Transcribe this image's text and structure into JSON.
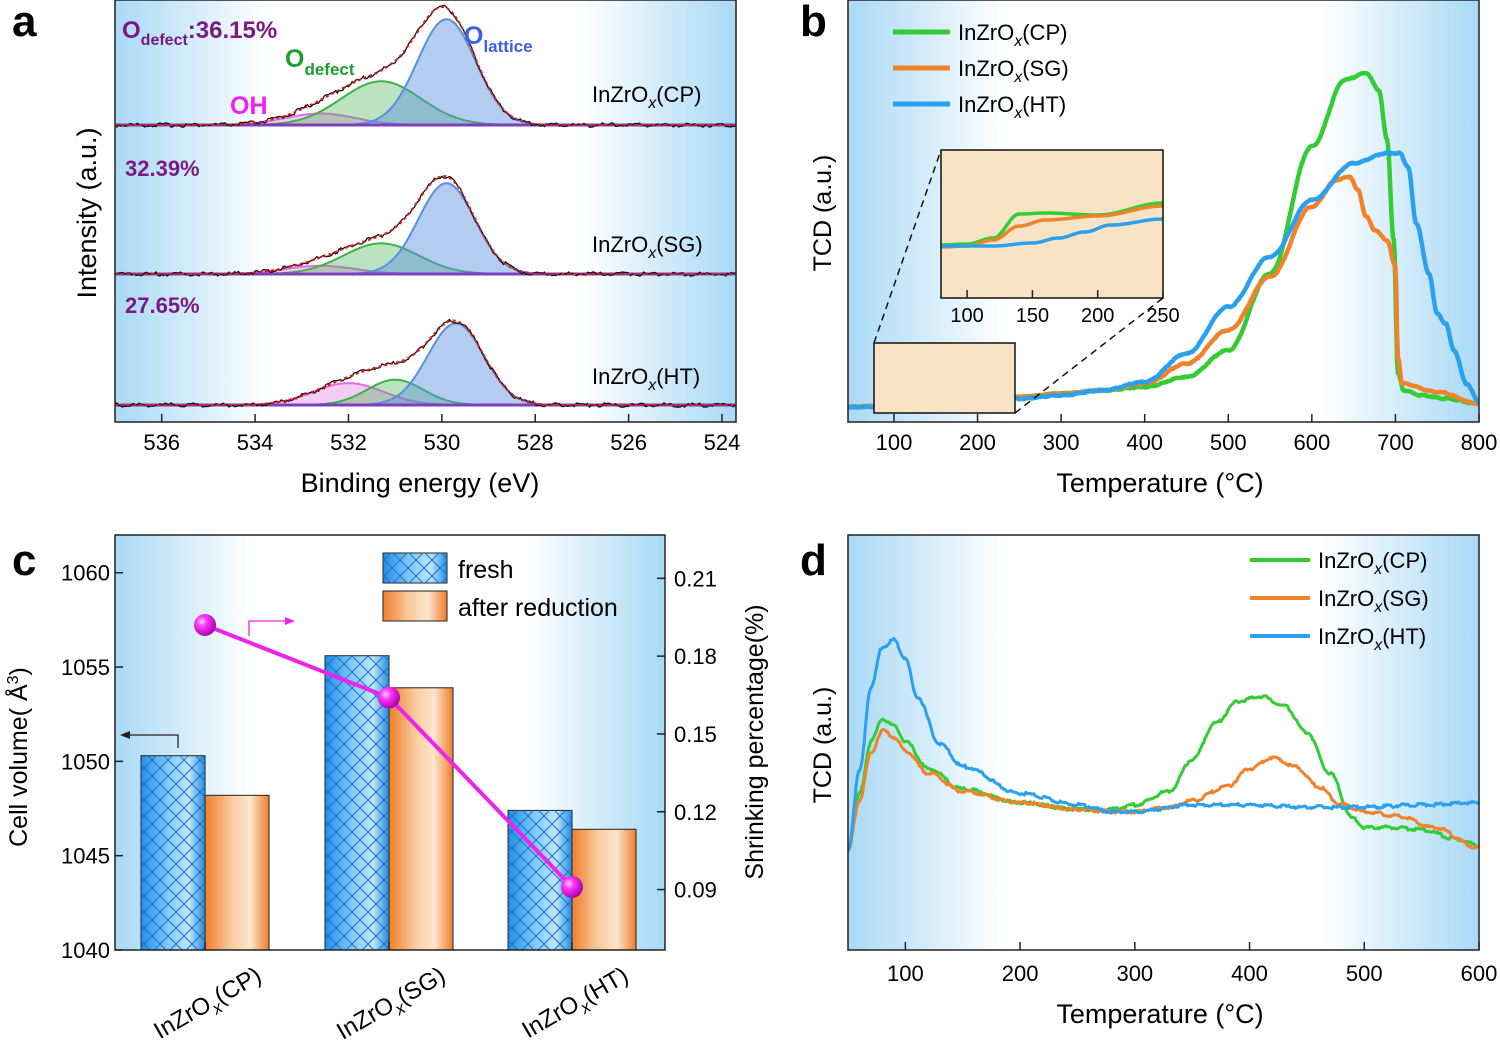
{
  "chart_data": [
    {
      "panel": "a",
      "type": "line",
      "panel_label": "a",
      "xlabel": "Binding energy (eV)",
      "ylabel": "Intensity (a.u.)",
      "xlim": [
        537,
        523.7
      ],
      "x_reversed": true,
      "xticks": [
        536,
        534,
        532,
        530,
        528,
        526,
        524
      ],
      "peak_labels": [
        {
          "text": "OH",
          "color": "#ee22ee"
        },
        {
          "text": "O",
          "sub": "defect",
          "color": "#1e9e2e"
        },
        {
          "text": "O",
          "sub": "lattice",
          "color": "#3b5fe8"
        }
      ],
      "annotation_prefix": {
        "text": "O",
        "sub": "defect",
        "color": "#7a1a82"
      },
      "colors": {
        "fit": "#e01818",
        "raw": "#111111",
        "baseline": "#7b3fbf",
        "OH": "#e070e0",
        "defect": "#3fb04a",
        "lattice": "#5a8ee0"
      },
      "series": [
        {
          "name": "InZrOx(CP)",
          "label_main": "InZrO",
          "label_sub": "x",
          "label_tail": "(CP)",
          "defect_percent": "36.15%",
          "components": {
            "OH": {
              "center": 532.6,
              "height": 0.1,
              "sigma": 0.75
            },
            "defect": {
              "center": 531.3,
              "height": 0.38,
              "sigma": 0.85
            },
            "lattice": {
              "center": 529.9,
              "height": 0.92,
              "sigma": 0.62
            }
          }
        },
        {
          "name": "InZrOx(SG)",
          "label_main": "InZrO",
          "label_sub": "x",
          "label_tail": "(SG)",
          "defect_percent": "32.39%",
          "components": {
            "OH": {
              "center": 532.6,
              "height": 0.07,
              "sigma": 0.75
            },
            "defect": {
              "center": 531.3,
              "height": 0.26,
              "sigma": 0.8
            },
            "lattice": {
              "center": 529.9,
              "height": 0.77,
              "sigma": 0.6
            }
          }
        },
        {
          "name": "InZrOx(HT)",
          "label_main": "InZrO",
          "label_sub": "x",
          "label_tail": "(HT)",
          "defect_percent": "27.65%",
          "components": {
            "OH": {
              "center": 532.0,
              "height": 0.19,
              "sigma": 0.75
            },
            "defect": {
              "center": 531.0,
              "height": 0.22,
              "sigma": 0.6
            },
            "lattice": {
              "center": 529.7,
              "height": 0.71,
              "sigma": 0.6
            }
          }
        }
      ]
    },
    {
      "panel": "b",
      "type": "line",
      "panel_label": "b",
      "xlabel": "Temperature (°C)",
      "ylabel": "TCD (a.u.)",
      "xlim": [
        45,
        800
      ],
      "xticks": [
        100,
        200,
        300,
        400,
        500,
        600,
        700,
        800
      ],
      "legend_position": "top-left",
      "series": [
        {
          "name": "InZrOx(CP)",
          "label_main": "InZrO",
          "label_sub": "x",
          "label_tail": "(CP)",
          "color": "#33cc33",
          "x": [
            45,
            100,
            130,
            150,
            200,
            250,
            300,
            350,
            400,
            450,
            500,
            550,
            600,
            640,
            665,
            680,
            690,
            698,
            703,
            710,
            730,
            760,
            800
          ],
          "y": [
            0.0,
            0.005,
            0.02,
            0.022,
            0.024,
            0.03,
            0.04,
            0.05,
            0.06,
            0.09,
            0.17,
            0.4,
            0.78,
            0.98,
            1.0,
            0.95,
            0.8,
            0.5,
            0.1,
            0.05,
            0.035,
            0.025,
            0.01
          ]
        },
        {
          "name": "InZrOx(SG)",
          "label_main": "InZrO",
          "label_sub": "x",
          "label_tail": "(SG)",
          "color": "#f0822a",
          "x": [
            45,
            100,
            150,
            200,
            250,
            300,
            350,
            400,
            450,
            500,
            550,
            600,
            630,
            645,
            655,
            665,
            675,
            690,
            700,
            703,
            708,
            750,
            800
          ],
          "y": [
            0.0,
            0.005,
            0.02,
            0.025,
            0.03,
            0.04,
            0.05,
            0.07,
            0.13,
            0.23,
            0.39,
            0.6,
            0.68,
            0.69,
            0.65,
            0.57,
            0.53,
            0.5,
            0.42,
            0.15,
            0.07,
            0.045,
            0.01
          ]
        },
        {
          "name": "InZrOx(HT)",
          "label_main": "InZrO",
          "label_sub": "x",
          "label_tail": "(HT)",
          "color": "#2aa0ee",
          "x": [
            45,
            100,
            150,
            200,
            250,
            300,
            350,
            400,
            450,
            500,
            550,
            600,
            650,
            690,
            705,
            715,
            725,
            740,
            750,
            760,
            770,
            785,
            800
          ],
          "y": [
            0.0,
            0.002,
            0.005,
            0.02,
            0.025,
            0.035,
            0.05,
            0.075,
            0.16,
            0.3,
            0.45,
            0.62,
            0.73,
            0.76,
            0.76,
            0.72,
            0.55,
            0.4,
            0.28,
            0.25,
            0.17,
            0.07,
            0.015
          ]
        }
      ],
      "inset": {
        "xticks": [
          100,
          150,
          200,
          250
        ],
        "xlim": [
          80,
          250
        ]
      }
    },
    {
      "panel": "c",
      "type": "bar",
      "panel_label": "c",
      "categories": [
        "InZrOx(CP)",
        "InZrOx(SG)",
        "InZrOx(HT)"
      ],
      "category_labels": [
        {
          "main": "InZrO",
          "sub": "x",
          "tail": "(CP)"
        },
        {
          "main": "InZrO",
          "sub": "x",
          "tail": "(SG)"
        },
        {
          "main": "InZrO",
          "sub": "x",
          "tail": "(HT)"
        }
      ],
      "ylabel": "Cell volume(Å³)",
      "ylabel_main": "Cell volume( Å",
      "ylabel_sup": "3",
      "ylabel_tail": ")",
      "ylim": [
        1040,
        1062
      ],
      "yticks": [
        1040,
        1045,
        1050,
        1055,
        1060
      ],
      "y2label": "Shrinking percentage(%)",
      "y2lim": [
        0.0667,
        0.2267
      ],
      "y2ticks": [
        "0.09",
        "0.12",
        "0.15",
        "0.18",
        "0.21"
      ],
      "series": [
        {
          "name": "fresh",
          "values": [
            1050.3,
            1055.6,
            1047.4
          ],
          "color": "#3aa5ee",
          "axis": "left"
        },
        {
          "name": "after reduction",
          "values": [
            1048.2,
            1053.9,
            1046.4
          ],
          "color": "#f2934a",
          "axis": "left"
        },
        {
          "name": "shrinking percentage",
          "values": [
            0.192,
            0.164,
            0.091
          ],
          "color": "#ee22ee",
          "axis": "right"
        }
      ],
      "legend_position": "top-right"
    },
    {
      "panel": "d",
      "type": "line",
      "panel_label": "d",
      "xlabel": "Temperature (°C)",
      "ylabel": "TCD (a.u.)",
      "xlim": [
        50,
        600
      ],
      "xticks": [
        100,
        200,
        300,
        400,
        500,
        600
      ],
      "legend_position": "top-right",
      "series": [
        {
          "name": "InZrOx(CP)",
          "label_main": "InZrO",
          "label_sub": "x",
          "label_tail": "(CP)",
          "color": "#33cc33",
          "x": [
            50,
            60,
            70,
            80,
            90,
            100,
            120,
            150,
            200,
            250,
            280,
            300,
            330,
            350,
            370,
            390,
            410,
            430,
            450,
            470,
            490,
            500,
            520,
            550,
            580,
            600
          ],
          "y": [
            0.0,
            0.25,
            0.48,
            0.58,
            0.55,
            0.48,
            0.36,
            0.27,
            0.21,
            0.18,
            0.18,
            0.2,
            0.26,
            0.4,
            0.56,
            0.66,
            0.68,
            0.64,
            0.52,
            0.34,
            0.14,
            0.1,
            0.1,
            0.09,
            0.05,
            0.02
          ]
        },
        {
          "name": "InZrOx(SG)",
          "label_main": "InZrO",
          "label_sub": "x",
          "label_tail": "(SG)",
          "color": "#f0822a",
          "x": [
            50,
            60,
            70,
            80,
            90,
            100,
            120,
            150,
            200,
            250,
            280,
            300,
            330,
            350,
            380,
            400,
            420,
            440,
            460,
            480,
            500,
            530,
            560,
            600
          ],
          "y": [
            0.0,
            0.22,
            0.43,
            0.53,
            0.5,
            0.44,
            0.34,
            0.26,
            0.21,
            0.18,
            0.17,
            0.17,
            0.19,
            0.22,
            0.28,
            0.36,
            0.41,
            0.37,
            0.28,
            0.2,
            0.17,
            0.15,
            0.1,
            0.01
          ]
        },
        {
          "name": "InZrOx(HT)",
          "label_main": "InZrO",
          "label_sub": "x",
          "label_tail": "(HT)",
          "color": "#2aa0ee",
          "x": [
            50,
            60,
            70,
            80,
            90,
            100,
            110,
            130,
            150,
            200,
            250,
            280,
            300,
            350,
            400,
            450,
            500,
            550,
            600
          ],
          "y": [
            0.0,
            0.35,
            0.72,
            0.9,
            0.93,
            0.85,
            0.68,
            0.47,
            0.37,
            0.25,
            0.2,
            0.17,
            0.17,
            0.2,
            0.2,
            0.19,
            0.19,
            0.2,
            0.21
          ]
        }
      ]
    }
  ]
}
